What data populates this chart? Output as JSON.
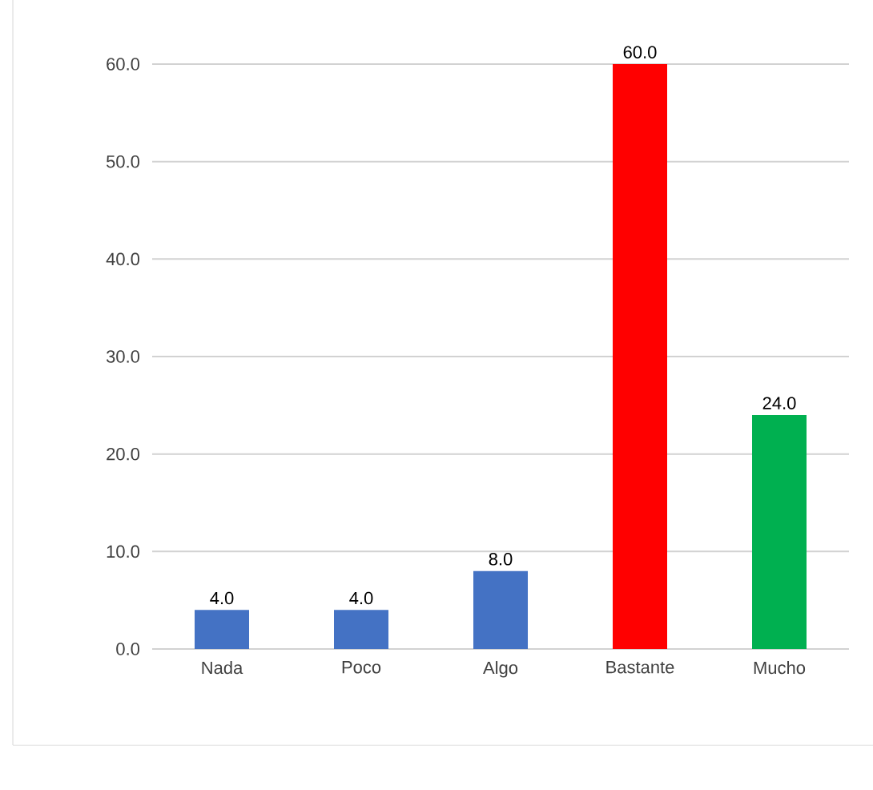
{
  "chart_data": {
    "type": "bar",
    "categories": [
      "Nada",
      "Poco",
      "Algo",
      "Bastante",
      "Mucho"
    ],
    "values": [
      4,
      4,
      8,
      60,
      24
    ],
    "colors": [
      "#4472c4",
      "#4472c4",
      "#4472c4",
      "#ff0000",
      "#00b050"
    ],
    "value_labels": [
      "4.0",
      "4.0",
      "8.0",
      "60.0",
      "24.0"
    ],
    "ylim": [
      0,
      60
    ],
    "yticks": [
      {
        "value": 0,
        "label": "0.0"
      },
      {
        "value": 10,
        "label": "10.0"
      },
      {
        "value": 20,
        "label": "20.0"
      },
      {
        "value": 30,
        "label": "30.0"
      },
      {
        "value": 40,
        "label": "40.0"
      },
      {
        "value": 50,
        "label": "50.0"
      },
      {
        "value": 60,
        "label": "60.0"
      }
    ],
    "grid": "y"
  }
}
